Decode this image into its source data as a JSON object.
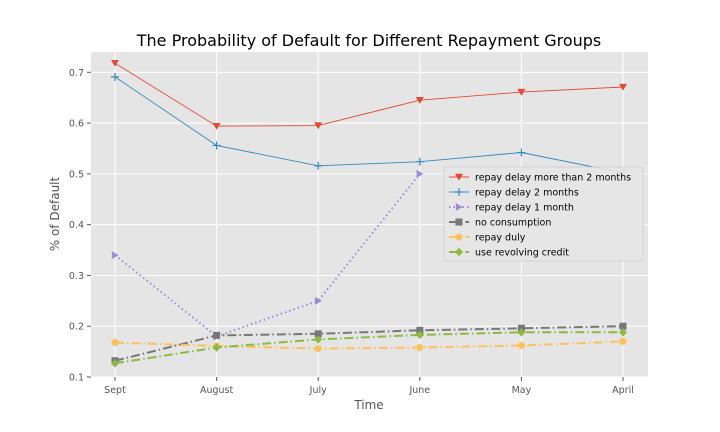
{
  "chart_data": {
    "type": "line",
    "title": "The Probability of Default for Different Repayment Groups",
    "xlabel": "Time",
    "ylabel": "% of Default",
    "categories": [
      "Sept",
      "August",
      "July",
      "June",
      "May",
      "April"
    ],
    "ylim": [
      0.1,
      0.74
    ],
    "yticks": [
      "0.1",
      "0.2",
      "0.3",
      "0.4",
      "0.5",
      "0.6",
      "0.7"
    ],
    "grid": true,
    "legend_position": "center-right",
    "series": [
      {
        "name": "repay delay more than 2 months",
        "values": [
          0.718,
          0.594,
          0.595,
          0.645,
          0.661,
          0.671
        ],
        "color": "#e24a33",
        "marker": "triangle-down",
        "dash": "solid",
        "width": "thin"
      },
      {
        "name": "repay delay 2 months",
        "values": [
          0.691,
          0.556,
          0.516,
          0.524,
          0.542,
          0.502
        ],
        "color": "#348abd",
        "marker": "plus",
        "dash": "solid",
        "width": "thin"
      },
      {
        "name": "repay delay 1 month",
        "values": [
          0.34,
          0.18,
          0.25,
          0.5,
          null,
          null
        ],
        "color": "#988ed5",
        "marker": "triangle-right",
        "dash": "dotted",
        "width": "thick"
      },
      {
        "name": "no consumption",
        "values": [
          0.132,
          0.182,
          0.185,
          0.192,
          0.196,
          0.2
        ],
        "color": "#777777",
        "marker": "square",
        "dash": "dashdot",
        "width": "thick"
      },
      {
        "name": "repay duly",
        "values": [
          0.168,
          0.161,
          0.156,
          0.158,
          0.162,
          0.17
        ],
        "color": "#fbc15e",
        "marker": "circle",
        "dash": "dashdot",
        "width": "thick"
      },
      {
        "name": "use revolving credit",
        "values": [
          0.127,
          0.158,
          0.174,
          0.183,
          0.188,
          0.188
        ],
        "color": "#8eba42",
        "marker": "diamond",
        "dash": "dashdot",
        "width": "thick"
      }
    ]
  }
}
